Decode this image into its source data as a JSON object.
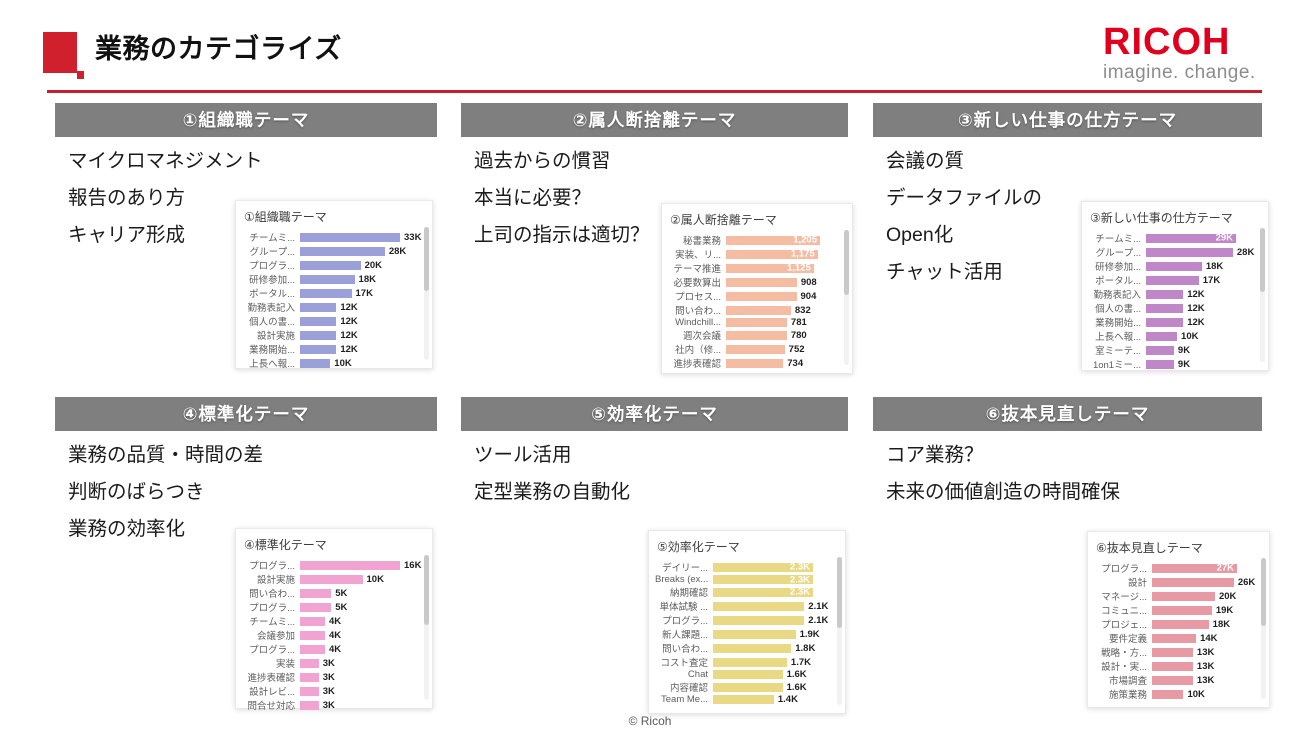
{
  "slide": {
    "title": "業務のカテゴライズ",
    "logo": {
      "brand": "RICOH",
      "tagline": "imagine. change."
    },
    "footer": "© Ricoh"
  },
  "theme": {
    "accent_red": "#d0202e",
    "rule_red": "#c41f30",
    "logo_red": "#e0001d",
    "header_gray": "#7f7f7f",
    "tagline_gray": "#8c8c8c"
  },
  "sections": [
    {
      "header": "①組織職テーマ",
      "bullets": [
        "マイクロマネジメント",
        "報告のあり方",
        "キャリア形成"
      ]
    },
    {
      "header": "②属人断捨離テーマ",
      "bullets": [
        "過去からの慣習",
        "本当に必要？",
        "上司の指示は適切？"
      ]
    },
    {
      "header": "③新しい仕事の仕方テーマ",
      "bullets": [
        "会議の質",
        "データファイルの",
        "Open化",
        "チャット活用"
      ]
    },
    {
      "header": "④標準化テーマ",
      "bullets": [
        "業務の品質・時間の差",
        "判断のばらつき",
        "業務の効率化"
      ]
    },
    {
      "header": "⑤効率化テーマ",
      "bullets": [
        "ツール活用",
        "定型業務の自動化"
      ]
    },
    {
      "header": "⑥抜本見直しテーマ",
      "bullets": [
        "コア業務？",
        "未来の価値創造の時間確保"
      ]
    }
  ],
  "chart_data": [
    {
      "type": "bar",
      "orientation": "horizontal",
      "title": "①組織職テーマ",
      "color": "#9ba0d9",
      "value_suffix": "K",
      "xlim": [
        0,
        33
      ],
      "grid": false,
      "legend": "none",
      "items": [
        {
          "label": "チームミ...",
          "value": 33,
          "display": "33K",
          "inside": false
        },
        {
          "label": "グループ...",
          "value": 28,
          "display": "28K",
          "inside": false
        },
        {
          "label": "プログラ...",
          "value": 20,
          "display": "20K",
          "inside": false
        },
        {
          "label": "研修参加...",
          "value": 18,
          "display": "18K",
          "inside": false
        },
        {
          "label": "ポータル...",
          "value": 17,
          "display": "17K",
          "inside": false
        },
        {
          "label": "勤務表記入",
          "value": 12,
          "display": "12K",
          "inside": false
        },
        {
          "label": "個人の書...",
          "value": 12,
          "display": "12K",
          "inside": false
        },
        {
          "label": "設計実施",
          "value": 12,
          "display": "12K",
          "inside": false
        },
        {
          "label": "業務開始...",
          "value": 12,
          "display": "12K",
          "inside": false
        },
        {
          "label": "上長へ報...",
          "value": 10,
          "display": "10K",
          "inside": false
        }
      ]
    },
    {
      "type": "bar",
      "orientation": "horizontal",
      "title": "②属人断捨離テーマ",
      "color": "#f4bca3",
      "value_suffix": "",
      "xlim": [
        0,
        1205
      ],
      "grid": false,
      "legend": "none",
      "items": [
        {
          "label": "秘書業務",
          "value": 1205,
          "display": "1,205",
          "inside": true
        },
        {
          "label": "実装、リ...",
          "value": 1175,
          "display": "1,175",
          "inside": true
        },
        {
          "label": "テーマ推進",
          "value": 1125,
          "display": "1,125",
          "inside": true
        },
        {
          "label": "必要数算出",
          "value": 908,
          "display": "908",
          "inside": false
        },
        {
          "label": "プロセス...",
          "value": 904,
          "display": "904",
          "inside": false
        },
        {
          "label": "問い合わ...",
          "value": 832,
          "display": "832",
          "inside": false
        },
        {
          "label": "Windchill...",
          "value": 781,
          "display": "781",
          "inside": false
        },
        {
          "label": "週次会議",
          "value": 780,
          "display": "780",
          "inside": false
        },
        {
          "label": "社内（修...",
          "value": 752,
          "display": "752",
          "inside": false
        },
        {
          "label": "進捗表確認",
          "value": 734,
          "display": "734",
          "inside": false
        }
      ]
    },
    {
      "type": "bar",
      "orientation": "horizontal",
      "title": "③新しい仕事の仕方テーマ",
      "color": "#bf86c8",
      "value_suffix": "K",
      "xlim": [
        0,
        29
      ],
      "grid": false,
      "legend": "none",
      "items": [
        {
          "label": "チームミ...",
          "value": 29,
          "display": "29K",
          "inside": true
        },
        {
          "label": "グループ...",
          "value": 28,
          "display": "28K",
          "inside": false
        },
        {
          "label": "研修参加...",
          "value": 18,
          "display": "18K",
          "inside": false
        },
        {
          "label": "ポータル...",
          "value": 17,
          "display": "17K",
          "inside": false
        },
        {
          "label": "勤務表記入",
          "value": 12,
          "display": "12K",
          "inside": false
        },
        {
          "label": "個人の書...",
          "value": 12,
          "display": "12K",
          "inside": false
        },
        {
          "label": "業務開始...",
          "value": 12,
          "display": "12K",
          "inside": false
        },
        {
          "label": "上長へ報...",
          "value": 10,
          "display": "10K",
          "inside": false
        },
        {
          "label": "室ミーテ...",
          "value": 9,
          "display": "9K",
          "inside": false
        },
        {
          "label": "1on1ミー...",
          "value": 9,
          "display": "9K",
          "inside": false
        }
      ]
    },
    {
      "type": "bar",
      "orientation": "horizontal",
      "title": "④標準化テーマ",
      "color": "#f1a3d1",
      "value_suffix": "K",
      "xlim": [
        0,
        16
      ],
      "grid": false,
      "legend": "none",
      "items": [
        {
          "label": "プログラ...",
          "value": 16,
          "display": "16K",
          "inside": false
        },
        {
          "label": "設計実施",
          "value": 10,
          "display": "10K",
          "inside": false
        },
        {
          "label": "問い合わ...",
          "value": 5,
          "display": "5K",
          "inside": false
        },
        {
          "label": "プログラ...",
          "value": 5,
          "display": "5K",
          "inside": false
        },
        {
          "label": "チームミ...",
          "value": 4,
          "display": "4K",
          "inside": false
        },
        {
          "label": "会議参加",
          "value": 4,
          "display": "4K",
          "inside": false
        },
        {
          "label": "プログラ...",
          "value": 4,
          "display": "4K",
          "inside": false
        },
        {
          "label": "実装",
          "value": 3,
          "display": "3K",
          "inside": false
        },
        {
          "label": "進捗表確認",
          "value": 3,
          "display": "3K",
          "inside": false
        },
        {
          "label": "設計レビ...",
          "value": 3,
          "display": "3K",
          "inside": false
        },
        {
          "label": "問合せ対応",
          "value": 3,
          "display": "3K",
          "inside": false
        }
      ]
    },
    {
      "type": "bar",
      "orientation": "horizontal",
      "title": "⑤効率化テーマ",
      "color": "#e9d884",
      "value_suffix": "K",
      "xlim": [
        0,
        2.3
      ],
      "grid": false,
      "legend": "none",
      "items": [
        {
          "label": "デイリー...",
          "value": 2.3,
          "display": "2.3K",
          "inside": true
        },
        {
          "label": "Breaks (ex...",
          "value": 2.3,
          "display": "2.3K",
          "inside": true
        },
        {
          "label": "納期確認",
          "value": 2.3,
          "display": "2.3K",
          "inside": true
        },
        {
          "label": "単体試験 ...",
          "value": 2.1,
          "display": "2.1K",
          "inside": false
        },
        {
          "label": "プログラ...",
          "value": 2.1,
          "display": "2.1K",
          "inside": false
        },
        {
          "label": "新人課題...",
          "value": 1.9,
          "display": "1.9K",
          "inside": false
        },
        {
          "label": "問い合わ...",
          "value": 1.8,
          "display": "1.8K",
          "inside": false
        },
        {
          "label": "コスト査定",
          "value": 1.7,
          "display": "1.7K",
          "inside": false
        },
        {
          "label": "Chat",
          "value": 1.6,
          "display": "1.6K",
          "inside": false
        },
        {
          "label": "内容確認",
          "value": 1.6,
          "display": "1.6K",
          "inside": false
        },
        {
          "label": "Team Me...",
          "value": 1.4,
          "display": "1.4K",
          "inside": false
        }
      ]
    },
    {
      "type": "bar",
      "orientation": "horizontal",
      "title": "⑥抜本見直しテーマ",
      "color": "#e799a4",
      "value_suffix": "K",
      "xlim": [
        0,
        27
      ],
      "grid": false,
      "legend": "none",
      "items": [
        {
          "label": "プログラ...",
          "value": 27,
          "display": "27K",
          "inside": true
        },
        {
          "label": "設計",
          "value": 26,
          "display": "26K",
          "inside": false
        },
        {
          "label": "マネージ...",
          "value": 20,
          "display": "20K",
          "inside": false
        },
        {
          "label": "コミュニ...",
          "value": 19,
          "display": "19K",
          "inside": false
        },
        {
          "label": "プロジェ...",
          "value": 18,
          "display": "18K",
          "inside": false
        },
        {
          "label": "要件定義",
          "value": 14,
          "display": "14K",
          "inside": false
        },
        {
          "label": "戦略・方...",
          "value": 13,
          "display": "13K",
          "inside": false
        },
        {
          "label": "設計・実...",
          "value": 13,
          "display": "13K",
          "inside": false
        },
        {
          "label": "市場調査",
          "value": 13,
          "display": "13K",
          "inside": false
        },
        {
          "label": "施策業務",
          "value": 10,
          "display": "10K",
          "inside": false
        }
      ]
    }
  ]
}
